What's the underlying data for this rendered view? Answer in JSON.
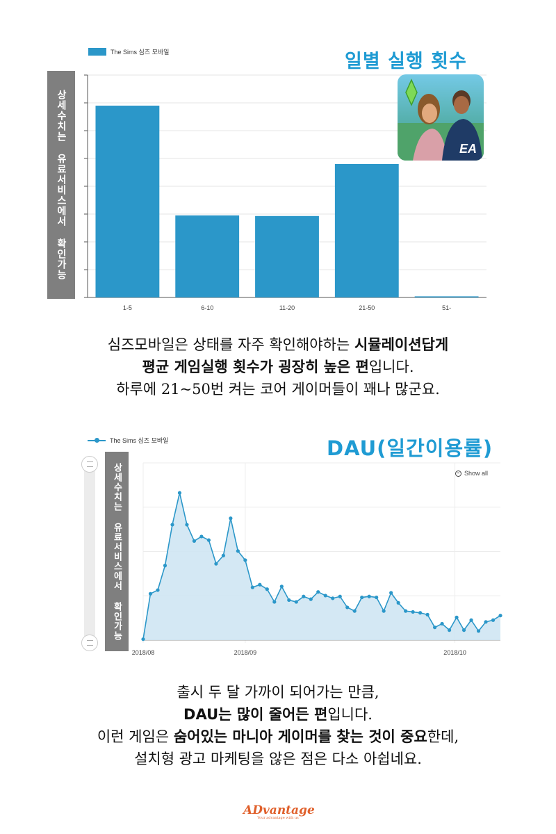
{
  "chart_data": [
    {
      "type": "bar",
      "title": "일별 실행 횟수",
      "legend": "The Sims 심즈 모바일",
      "legend_position": "top-left",
      "categories": [
        "1-5",
        "6-10",
        "11-20",
        "21-50",
        "51-"
      ],
      "values": [
        69,
        29.5,
        29.3,
        48,
        0.4
      ],
      "ylim": [
        0,
        80
      ],
      "grid": true,
      "color": "#2b97c9"
    },
    {
      "type": "area",
      "title": "DAU(일간이용률)",
      "legend": "The Sims 심즈 모바일",
      "legend_position": "top-left",
      "x_tick_labels": [
        "2018/08",
        "2018/09",
        "2018/10"
      ],
      "values": [
        1,
        51,
        55,
        82,
        127,
        162,
        127,
        109,
        114,
        110,
        84,
        93,
        134,
        98,
        88,
        58,
        61,
        56,
        42,
        59,
        44,
        42,
        48,
        45,
        53,
        49,
        46,
        48,
        36,
        32,
        47,
        48,
        47,
        32,
        52,
        41,
        32,
        31,
        30,
        28,
        14,
        18,
        11,
        25,
        11,
        22,
        10,
        20,
        22,
        27
      ],
      "ylim": [
        0,
        195
      ],
      "grid": true,
      "color": "#2b97c9"
    }
  ],
  "banner_text": "상세수치는 유료서비스에서 확인가능",
  "show_all_label": "Show all",
  "caption1": {
    "l1a": "심즈모바일은 상태를 자주 확인해야하는 ",
    "l1b": "시뮬레이션답게",
    "l2a": "평균 게임실행 횟수가 굉장히 높은 편",
    "l2b": "입니다.",
    "l3": "하루에 21~50번 켜는 코어 게이머들이 꽤나 많군요."
  },
  "caption2": {
    "l1": "출시 두 달 가까이 되어가는 만큼,",
    "l2a": "DAU는 많이 줄어든 편",
    "l2b": "입니다.",
    "l3a": "이런 게임은 ",
    "l3b": "숨어있는 마니아 게이머를 찾는 것이 중요",
    "l3c": "한데,",
    "l4": "설치형 광고 마케팅을 않은 점은 다소 아쉽네요."
  },
  "app_icon": {
    "name": "sims-mobile-app-icon",
    "badge": "EA"
  },
  "logo": {
    "text": "ADvantage",
    "tagline": "Your advantage with us"
  },
  "colors": {
    "accent": "#2b97c9",
    "heading": "#1f9bd3",
    "banner": "#7f7f7f",
    "logo": "#e0602b"
  }
}
